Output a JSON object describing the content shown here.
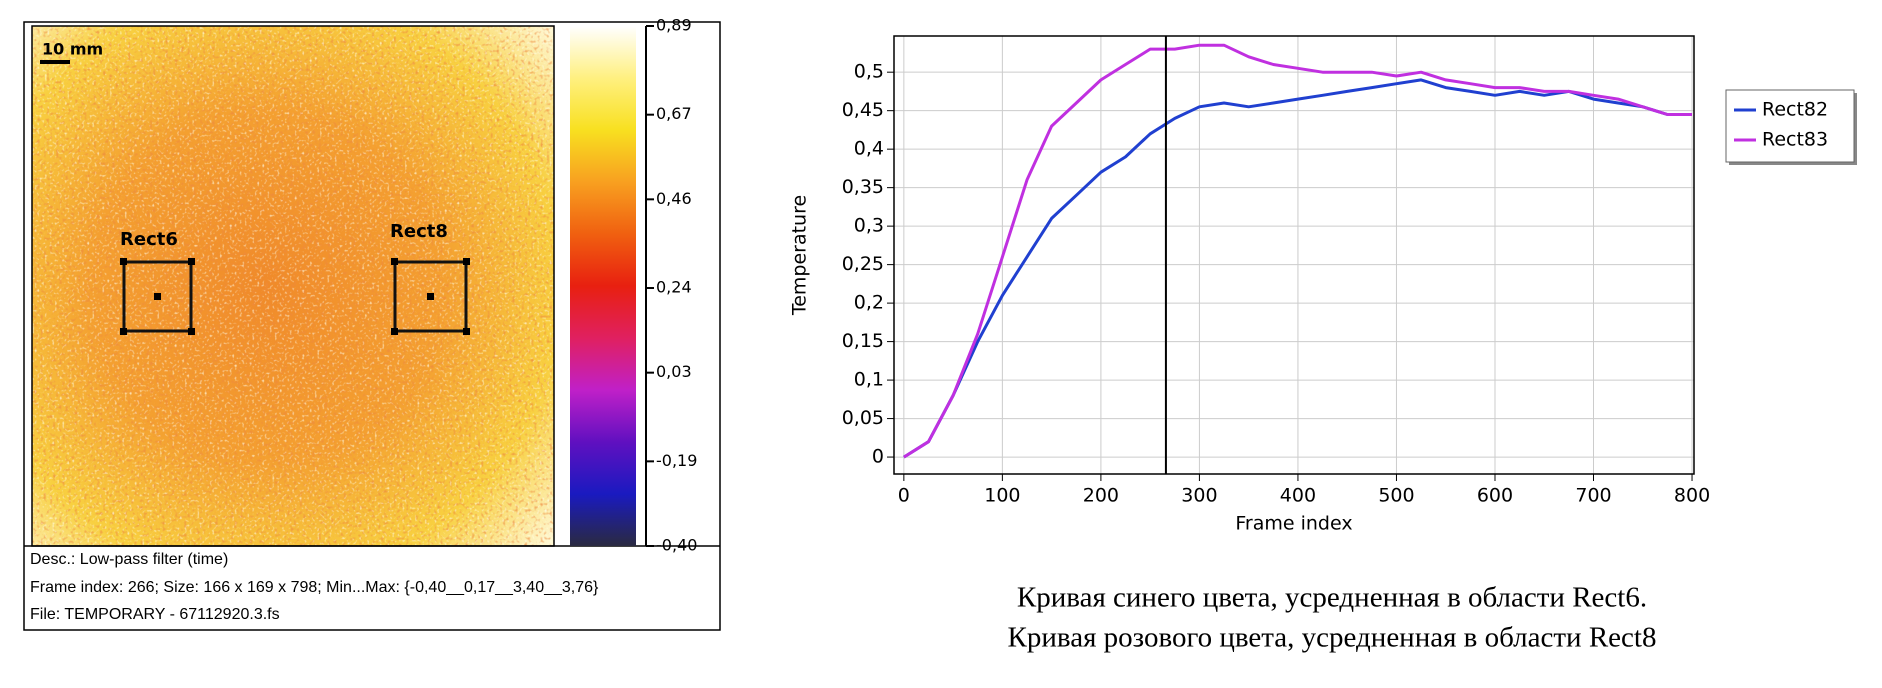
{
  "chart_data": [
    {
      "type": "heatmap",
      "scale_label": "10 mm",
      "regions": [
        "Rect6",
        "Rect8"
      ],
      "colorbar": {
        "colors": [
          "#2a2a40",
          "#1a1ac0",
          "#6010c0",
          "#c020c8",
          "#e02060",
          "#e82010",
          "#f06010",
          "#f8a020",
          "#f8e020",
          "#fff080",
          "#ffffff"
        ],
        "lim": [
          -0.4,
          0.89
        ],
        "ticks": [
          {
            "value": 0.89,
            "label": "0,89"
          },
          {
            "value": 0.67,
            "label": "0,67"
          },
          {
            "value": 0.46,
            "label": "0,46"
          },
          {
            "value": 0.24,
            "label": "0,24"
          },
          {
            "value": 0.03,
            "label": "0,03"
          },
          {
            "value": -0.19,
            "label": "-0,19"
          },
          {
            "value": -0.4,
            "label": "-0,40"
          }
        ]
      },
      "info": [
        "Desc.:  Low-pass filter (time)",
        "Frame index:  266; Size:  166 x 169 x 798; Min...Max:  {-0,40__0,17__3,40__3,76}",
        "File: TEMPORARY - 67112920.3.fs"
      ]
    },
    {
      "type": "line",
      "x_label": "Frame index",
      "y_label": "Temperature",
      "x": [
        0,
        25,
        50,
        75,
        100,
        125,
        150,
        175,
        200,
        225,
        250,
        275,
        300,
        325,
        350,
        375,
        400,
        425,
        450,
        475,
        500,
        525,
        550,
        575,
        600,
        625,
        650,
        675,
        700,
        725,
        750,
        775,
        800
      ],
      "series": [
        {
          "name": "Rect82",
          "color": "#2040d0",
          "values": [
            0,
            0.02,
            0.08,
            0.15,
            0.21,
            0.26,
            0.31,
            0.34,
            0.37,
            0.39,
            0.42,
            0.44,
            0.455,
            0.46,
            0.455,
            0.46,
            0.465,
            0.47,
            0.475,
            0.48,
            0.485,
            0.49,
            0.48,
            0.475,
            0.47,
            0.475,
            0.47,
            0.475,
            0.465,
            0.46,
            0.455,
            0.445,
            0.445
          ]
        },
        {
          "name": "Rect83",
          "color": "#c030e0",
          "values": [
            0,
            0.02,
            0.08,
            0.16,
            0.26,
            0.36,
            0.43,
            0.46,
            0.49,
            0.51,
            0.53,
            0.53,
            0.535,
            0.535,
            0.52,
            0.51,
            0.505,
            0.5,
            0.5,
            0.5,
            0.495,
            0.5,
            0.49,
            0.485,
            0.48,
            0.48,
            0.475,
            0.475,
            0.47,
            0.465,
            0.455,
            0.445,
            0.445
          ]
        }
      ],
      "cursor_x": 266,
      "xlim": [
        -10,
        802
      ],
      "ylim": [
        -0.022,
        0.547
      ],
      "xticks": [
        0,
        100,
        200,
        300,
        400,
        500,
        600,
        700,
        800
      ],
      "yticks": [
        0,
        {
          "value": 0.05,
          "label": "0,05"
        },
        {
          "value": 0.1,
          "label": "0,1"
        },
        {
          "value": 0.15,
          "label": "0,15"
        },
        {
          "value": 0.2,
          "label": "0,2"
        },
        {
          "value": 0.25,
          "label": "0,25"
        },
        {
          "value": 0.3,
          "label": "0,3"
        },
        {
          "value": 0.35,
          "label": "0,35"
        },
        {
          "value": 0.4,
          "label": "0,4"
        },
        {
          "value": 0.45,
          "label": "0,45"
        },
        {
          "value": 0.5,
          "label": "0,5"
        }
      ],
      "grid": true
    }
  ],
  "caption": [
    "Кривая синего цвета, усредненная в области Rect6.",
    "Кривая розового цвета, усредненная в области Rect8"
  ]
}
